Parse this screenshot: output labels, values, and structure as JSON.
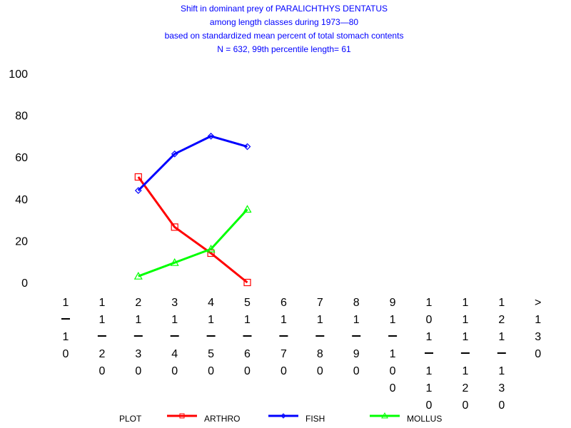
{
  "chart_data": {
    "type": "line",
    "title": [
      "Shift in dominant prey of PARALICHTHYS DENTATUS",
      "among length classes during 1973—80",
      "based on standardized mean percent of  total stomach contents",
      "N =  632, 99th percentile   length= 61"
    ],
    "categories": [
      "1-10",
      "11-20",
      "21-30",
      "31-40",
      "41-50",
      "51-60",
      "61-70",
      "71-80",
      "81-90",
      "91-100",
      "101-110",
      "111-120",
      "121-130",
      ">130"
    ],
    "ylim": [
      0,
      100
    ],
    "yticks": [
      0,
      20,
      40,
      60,
      80,
      100
    ],
    "legend_title": "PLOT",
    "series": [
      {
        "name": "ARTHRO",
        "color": "#ff0000",
        "marker": "square",
        "values": [
          null,
          null,
          50.5,
          26.5,
          14,
          0,
          null,
          null,
          null,
          null,
          null,
          null,
          null,
          null
        ]
      },
      {
        "name": "FISH",
        "color": "#0000ff",
        "marker": "diamond",
        "values": [
          null,
          null,
          44,
          61.5,
          70,
          65,
          null,
          null,
          null,
          null,
          null,
          null,
          null,
          null
        ]
      },
      {
        "name": "MOLLUS",
        "color": "#00ff00",
        "marker": "triangle",
        "values": [
          null,
          null,
          3,
          9.5,
          16,
          35,
          null,
          null,
          null,
          null,
          null,
          null,
          null,
          null
        ]
      }
    ]
  }
}
